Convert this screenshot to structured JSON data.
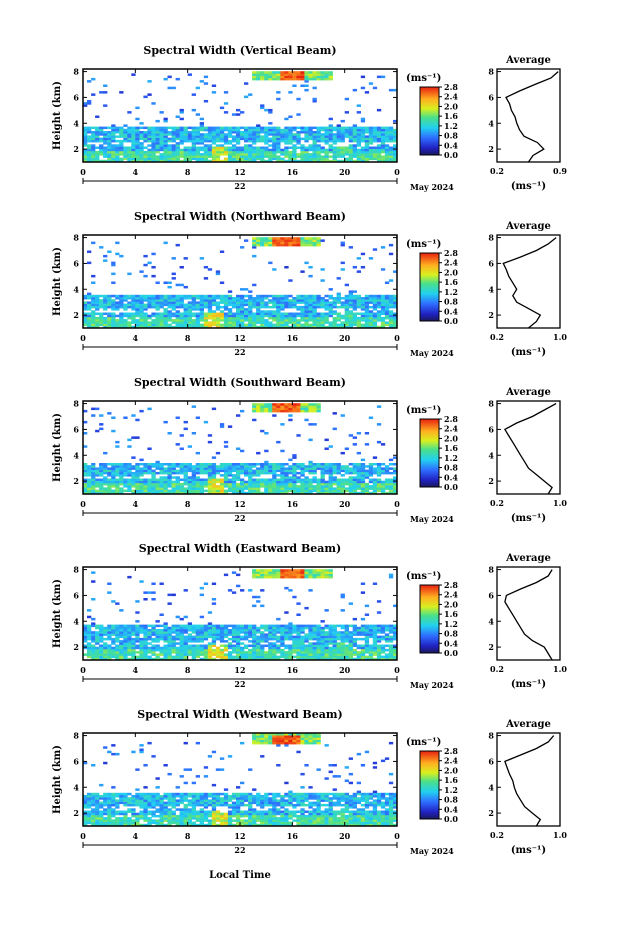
{
  "figure": {
    "xlabel": "Local Time",
    "date_label": "May 2024",
    "day_label": "22",
    "height_label": "Height (km)",
    "unit_label": "(ms⁻¹)",
    "avg_title": "Average",
    "avg_xlabel": "(ms⁻¹)"
  },
  "chart_data": [
    {
      "type": "heatmap",
      "title": "Spectral Width (Vertical Beam)",
      "ylabel": "Height (km)",
      "x_ticks": [
        "0",
        "4",
        "8",
        "12",
        "16",
        "20",
        "0"
      ],
      "y_ticks": [
        "2",
        "4",
        "6",
        "8"
      ],
      "xlim": [
        0,
        24
      ],
      "ylim": [
        1,
        8.2
      ],
      "colorbar": {
        "ticks": [
          "0.0",
          "0.4",
          "0.8",
          "1.2",
          "1.6",
          "2.0",
          "2.4",
          "2.8"
        ],
        "range": [
          0,
          2.8
        ],
        "colormap": "jet"
      },
      "features": {
        "main_layer_top_km": 3.8,
        "main_layer_peak_hour": 10.5,
        "upper_patch_km": [
          7.4,
          8.1
        ],
        "upper_patch_hours": [
          13,
          19
        ]
      },
      "average_profile": {
        "xlabel": "(ms⁻¹)",
        "x_ticks": [
          "0.2",
          "0.9"
        ],
        "xlim": [
          0.2,
          0.9
        ],
        "y_ticks": [
          "2",
          "4",
          "6",
          "8"
        ],
        "height_km": [
          1.0,
          1.5,
          2.0,
          2.5,
          3.0,
          3.5,
          4.0,
          4.5,
          5.0,
          5.5,
          6.0,
          6.5,
          7.0,
          7.5,
          8.0
        ],
        "width_ms": [
          0.55,
          0.6,
          0.72,
          0.65,
          0.5,
          0.45,
          0.42,
          0.4,
          0.36,
          0.34,
          0.3,
          0.45,
          0.62,
          0.8,
          0.88
        ]
      }
    },
    {
      "type": "heatmap",
      "title": "Spectral Width (Northward Beam)",
      "ylabel": "Height (km)",
      "x_ticks": [
        "0",
        "4",
        "8",
        "12",
        "16",
        "20",
        "0"
      ],
      "y_ticks": [
        "2",
        "4",
        "6",
        "8"
      ],
      "xlim": [
        0,
        24
      ],
      "ylim": [
        1,
        8.2
      ],
      "colorbar": {
        "ticks": [
          "0.0",
          "0.4",
          "0.8",
          "1.2",
          "1.6",
          "2.0",
          "2.4",
          "2.8"
        ],
        "range": [
          0,
          2.8
        ],
        "colormap": "jet"
      },
      "features": {
        "main_layer_top_km": 3.6,
        "main_layer_peak_hour": 10.0,
        "upper_patch_km": [
          7.3,
          8.0
        ],
        "upper_patch_hours": [
          13,
          18
        ]
      },
      "average_profile": {
        "xlabel": "(ms⁻¹)",
        "x_ticks": [
          "0.2",
          "1.0"
        ],
        "xlim": [
          0.2,
          1.0
        ],
        "y_ticks": [
          "2",
          "4",
          "6",
          "8"
        ],
        "height_km": [
          1.0,
          1.5,
          2.0,
          2.5,
          3.0,
          3.5,
          4.0,
          4.5,
          5.0,
          5.5,
          6.0,
          6.5,
          7.0,
          7.5,
          8.0
        ],
        "width_ms": [
          0.6,
          0.7,
          0.75,
          0.6,
          0.45,
          0.4,
          0.45,
          0.4,
          0.35,
          0.32,
          0.28,
          0.5,
          0.7,
          0.85,
          0.95
        ]
      }
    },
    {
      "type": "heatmap",
      "title": "Spectral Width (Southward Beam)",
      "ylabel": "Height (km)",
      "x_ticks": [
        "0",
        "4",
        "8",
        "12",
        "16",
        "20",
        "0"
      ],
      "y_ticks": [
        "2",
        "4",
        "6",
        "8"
      ],
      "xlim": [
        0,
        24
      ],
      "ylim": [
        1,
        8.2
      ],
      "colorbar": {
        "ticks": [
          "0.0",
          "0.4",
          "0.8",
          "1.2",
          "1.6",
          "2.0",
          "2.4",
          "2.8"
        ],
        "range": [
          0,
          2.8
        ],
        "colormap": "jet"
      },
      "features": {
        "main_layer_top_km": 3.4,
        "main_layer_peak_hour": 10.2,
        "upper_patch_km": [
          7.4,
          8.1
        ],
        "upper_patch_hours": [
          13,
          18
        ]
      },
      "average_profile": {
        "xlabel": "(ms⁻¹)",
        "x_ticks": [
          "0.2",
          "1.0"
        ],
        "xlim": [
          0.2,
          1.0
        ],
        "y_ticks": [
          "2",
          "4",
          "6",
          "8"
        ],
        "height_km": [
          1.0,
          1.5,
          2.0,
          2.5,
          3.0,
          3.5,
          4.0,
          4.5,
          5.0,
          5.5,
          6.0,
          6.5,
          7.0,
          7.5,
          8.0
        ],
        "width_ms": [
          0.85,
          0.9,
          0.8,
          0.7,
          0.6,
          0.55,
          0.5,
          0.45,
          0.4,
          0.35,
          0.3,
          0.45,
          0.65,
          0.8,
          0.95
        ]
      }
    },
    {
      "type": "heatmap",
      "title": "Spectral Width (Eastward Beam)",
      "ylabel": "Height (km)",
      "x_ticks": [
        "0",
        "4",
        "8",
        "12",
        "16",
        "20",
        "0"
      ],
      "y_ticks": [
        "2",
        "4",
        "6",
        "8"
      ],
      "xlim": [
        0,
        24
      ],
      "ylim": [
        1,
        8.2
      ],
      "colorbar": {
        "ticks": [
          "0.0",
          "0.4",
          "0.8",
          "1.2",
          "1.6",
          "2.0",
          "2.4",
          "2.8"
        ],
        "range": [
          0,
          2.8
        ],
        "colormap": "jet"
      },
      "features": {
        "main_layer_top_km": 3.8,
        "main_layer_peak_hour": 10.3,
        "upper_patch_km": [
          7.3,
          8.1
        ],
        "upper_patch_hours": [
          13,
          19
        ]
      },
      "average_profile": {
        "xlabel": "(ms⁻¹)",
        "x_ticks": [
          "0.2",
          "1.0"
        ],
        "xlim": [
          0.2,
          1.0
        ],
        "y_ticks": [
          "2",
          "4",
          "6",
          "8"
        ],
        "height_km": [
          1.0,
          1.5,
          2.0,
          2.5,
          3.0,
          3.5,
          4.0,
          4.5,
          5.0,
          5.5,
          6.0,
          6.5,
          7.0,
          7.5,
          8.0
        ],
        "width_ms": [
          0.9,
          0.85,
          0.8,
          0.65,
          0.55,
          0.5,
          0.45,
          0.4,
          0.35,
          0.3,
          0.32,
          0.5,
          0.7,
          0.85,
          0.9
        ]
      }
    },
    {
      "type": "heatmap",
      "title": "Spectral Width (Westward Beam)",
      "ylabel": "Height (km)",
      "x_ticks": [
        "0",
        "4",
        "8",
        "12",
        "16",
        "20",
        "0"
      ],
      "y_ticks": [
        "2",
        "4",
        "6",
        "8"
      ],
      "xlim": [
        0,
        24
      ],
      "ylim": [
        1,
        8.2
      ],
      "colorbar": {
        "ticks": [
          "0.0",
          "0.4",
          "0.8",
          "1.2",
          "1.6",
          "2.0",
          "2.4",
          "2.8"
        ],
        "range": [
          0,
          2.8
        ],
        "colormap": "jet"
      },
      "features": {
        "main_layer_top_km": 3.6,
        "main_layer_peak_hour": 10.4,
        "upper_patch_km": [
          7.3,
          8.2
        ],
        "upper_patch_hours": [
          13,
          18
        ]
      },
      "average_profile": {
        "xlabel": "(ms⁻¹)",
        "x_ticks": [
          "0.2",
          "1.0"
        ],
        "xlim": [
          0.2,
          1.0
        ],
        "y_ticks": [
          "2",
          "4",
          "6",
          "8"
        ],
        "height_km": [
          1.0,
          1.5,
          2.0,
          2.5,
          3.0,
          3.5,
          4.0,
          4.5,
          5.0,
          5.5,
          6.0,
          6.5,
          7.0,
          7.5,
          8.0
        ],
        "width_ms": [
          0.7,
          0.75,
          0.65,
          0.55,
          0.5,
          0.45,
          0.42,
          0.4,
          0.36,
          0.33,
          0.3,
          0.5,
          0.7,
          0.85,
          0.92
        ]
      }
    }
  ]
}
